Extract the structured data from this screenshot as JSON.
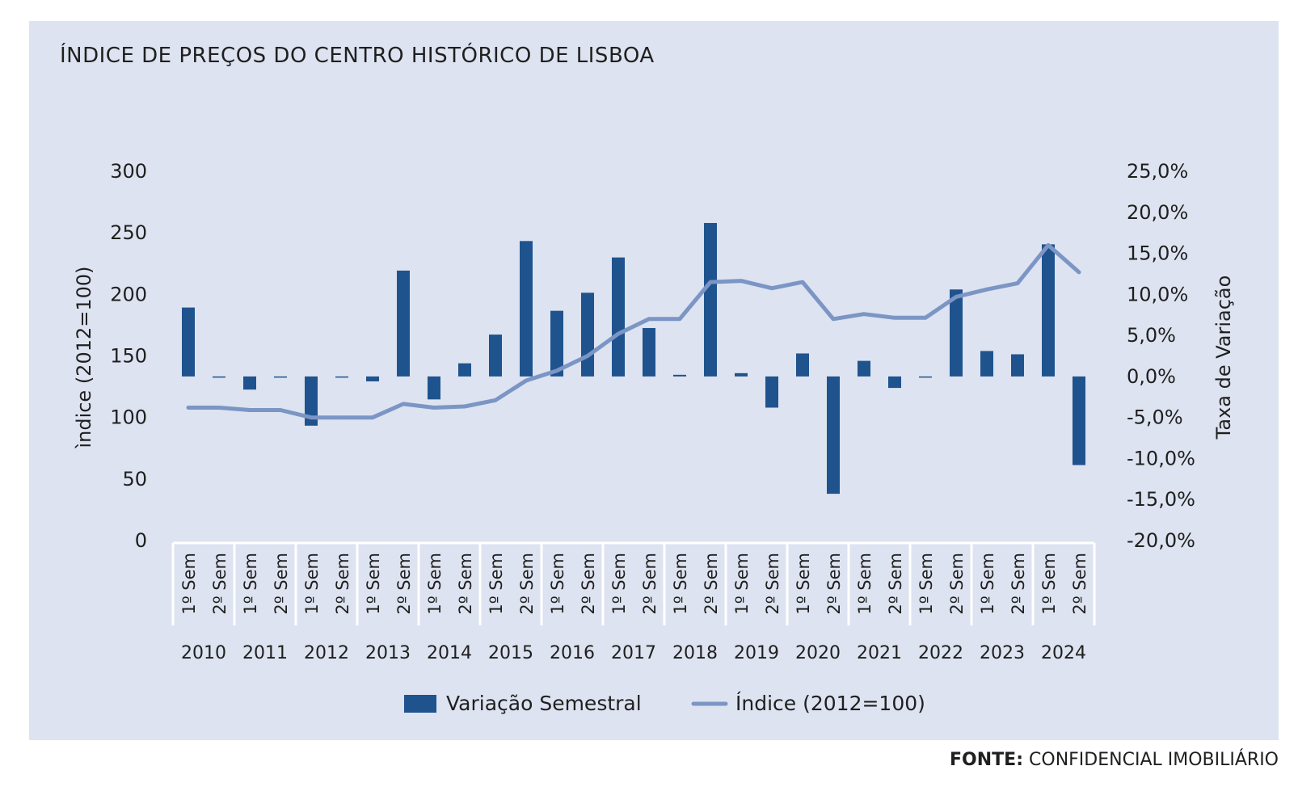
{
  "title": "ÍNDICE DE PREÇOS DO CENTRO HISTÓRICO DE LISBOA",
  "source": {
    "label": "FONTE:",
    "text": "CONFIDENCIAL IMOBILIÁRIO"
  },
  "colors": {
    "panel": "#dde3f0",
    "bar": "#1f538e",
    "line": "#7b95c5"
  },
  "chart_data": {
    "type": "bar+line",
    "ylabel_left": "ìndice  (2012=100)",
    "ylabel_right": "Taxa de Variação",
    "left_ticks": [
      "300",
      "250",
      "200",
      "150",
      "100",
      "50",
      "0"
    ],
    "right_ticks": [
      "25,0%",
      "20,0%",
      "15,0%",
      "10,0%",
      "5,0%",
      "0,0%",
      "-5,0%",
      "-10,0%",
      "-15,0%",
      "-20,0%"
    ],
    "ylim_left": [
      0,
      300
    ],
    "ylim_right": [
      -20,
      25
    ],
    "years": [
      "2010",
      "2011",
      "2012",
      "2013",
      "2014",
      "2015",
      "2016",
      "2017",
      "2018",
      "2019",
      "2020",
      "2021",
      "2022",
      "2023",
      "2024"
    ],
    "semester_labels": [
      "1º Sem",
      "2º Sem"
    ],
    "series": [
      {
        "name": "Variação Semestral",
        "type": "bar",
        "axis": "right",
        "values": [
          8.4,
          0.0,
          -1.6,
          0.0,
          -6.0,
          0.0,
          -0.6,
          12.9,
          -2.8,
          1.6,
          5.1,
          16.5,
          8.0,
          10.2,
          14.5,
          5.9,
          0.2,
          18.7,
          0.4,
          -3.8,
          2.8,
          -14.3,
          1.9,
          -1.4,
          -0.1,
          10.6,
          3.1,
          2.7,
          16.1,
          -10.8
        ]
      },
      {
        "name": "Índice (2012=100)",
        "type": "line",
        "axis": "left",
        "values": [
          108,
          108,
          106,
          106,
          100,
          100,
          100,
          111,
          108,
          109,
          114,
          130,
          138,
          150,
          168,
          180,
          180,
          210,
          211,
          205,
          210,
          180,
          184,
          181,
          181,
          198,
          204,
          209,
          240,
          218
        ]
      }
    ],
    "legend_position": "bottom",
    "grid": false
  }
}
